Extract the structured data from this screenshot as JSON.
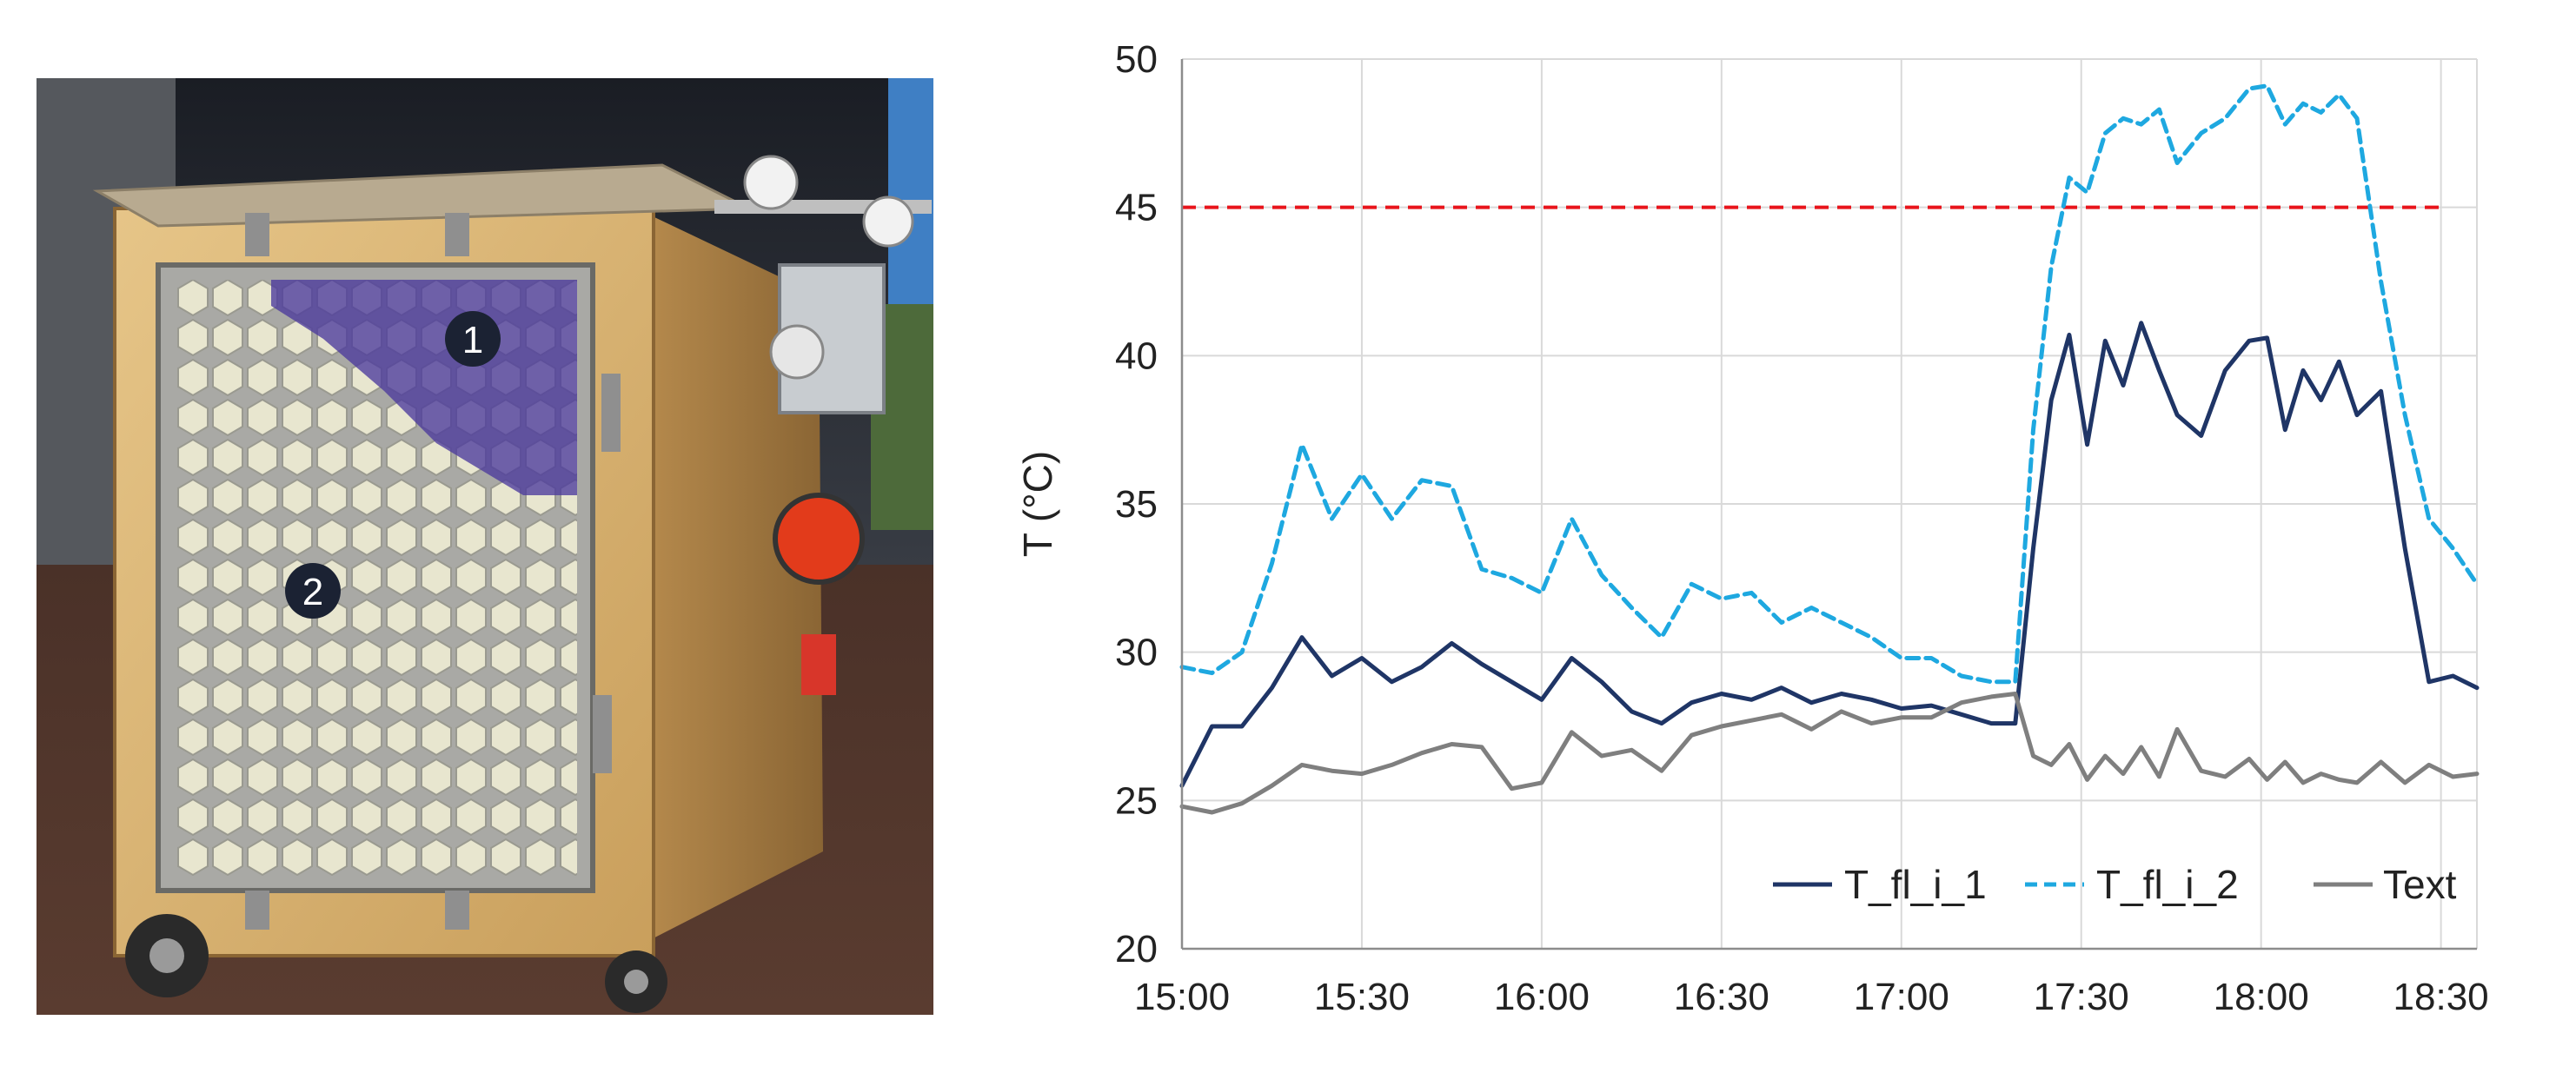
{
  "photo": {
    "markers": [
      {
        "label": "1"
      },
      {
        "label": "2"
      }
    ]
  },
  "chart_data": {
    "type": "line",
    "xlabel": "",
    "ylabel": "T (°C)",
    "ylim": [
      20,
      50
    ],
    "yticks": [
      20,
      25,
      30,
      35,
      40,
      45,
      50
    ],
    "xlim": [
      "15:00",
      "18:36"
    ],
    "xticks": [
      "15:00",
      "15:30",
      "16:00",
      "16:30",
      "17:00",
      "17:30",
      "18:00",
      "18:30"
    ],
    "grid": true,
    "legend_position": "bottom-right",
    "threshold": {
      "y": 45,
      "color": "#e8141b",
      "style": "dashed"
    },
    "series": [
      {
        "name": "T_fl_i_1",
        "color": "#1f3566",
        "style": "solid",
        "x": [
          "15:00",
          "15:05",
          "15:10",
          "15:15",
          "15:20",
          "15:25",
          "15:30",
          "15:35",
          "15:40",
          "15:45",
          "15:50",
          "15:55",
          "16:00",
          "16:05",
          "16:10",
          "16:15",
          "16:20",
          "16:25",
          "16:30",
          "16:35",
          "16:40",
          "16:45",
          "16:50",
          "16:55",
          "17:00",
          "17:05",
          "17:10",
          "17:15",
          "17:19",
          "17:22",
          "17:25",
          "17:28",
          "17:31",
          "17:34",
          "17:37",
          "17:40",
          "17:43",
          "17:46",
          "17:50",
          "17:54",
          "17:58",
          "18:01",
          "18:04",
          "18:07",
          "18:10",
          "18:13",
          "18:16",
          "18:20",
          "18:24",
          "18:28",
          "18:32",
          "18:36"
        ],
        "values": [
          25.5,
          27.5,
          27.5,
          28.8,
          30.5,
          29.2,
          29.8,
          29.0,
          29.5,
          30.3,
          29.6,
          29.0,
          28.4,
          29.8,
          29.0,
          28.0,
          27.6,
          28.3,
          28.6,
          28.4,
          28.8,
          28.3,
          28.6,
          28.4,
          28.1,
          28.2,
          27.9,
          27.6,
          27.6,
          33.5,
          38.5,
          40.7,
          37.0,
          40.5,
          39.0,
          41.1,
          39.5,
          38.0,
          37.3,
          39.5,
          40.5,
          40.6,
          37.5,
          39.5,
          38.5,
          39.8,
          38.0,
          38.8,
          33.5,
          29.0,
          29.2,
          28.8
        ]
      },
      {
        "name": "T_fl_i_2",
        "color": "#1ea8e0",
        "style": "dashed",
        "x": [
          "15:00",
          "15:05",
          "15:10",
          "15:15",
          "15:20",
          "15:25",
          "15:30",
          "15:35",
          "15:40",
          "15:45",
          "15:50",
          "15:55",
          "16:00",
          "16:05",
          "16:10",
          "16:15",
          "16:20",
          "16:25",
          "16:30",
          "16:35",
          "16:40",
          "16:45",
          "16:50",
          "16:55",
          "17:00",
          "17:05",
          "17:10",
          "17:15",
          "17:19",
          "17:22",
          "17:25",
          "17:28",
          "17:31",
          "17:34",
          "17:37",
          "17:40",
          "17:43",
          "17:46",
          "17:50",
          "17:54",
          "17:58",
          "18:01",
          "18:04",
          "18:07",
          "18:10",
          "18:13",
          "18:16",
          "18:20",
          "18:24",
          "18:28",
          "18:32",
          "18:36"
        ],
        "values": [
          29.5,
          29.3,
          30.0,
          33.0,
          37.0,
          34.5,
          36.0,
          34.5,
          35.8,
          35.6,
          32.8,
          32.5,
          32.0,
          34.5,
          32.6,
          31.5,
          30.5,
          32.3,
          31.8,
          32.0,
          31.0,
          31.5,
          31.0,
          30.5,
          29.8,
          29.8,
          29.2,
          29.0,
          29.0,
          37.5,
          43.0,
          46.0,
          45.5,
          47.5,
          48.0,
          47.8,
          48.3,
          46.5,
          47.5,
          48.0,
          49.0,
          49.1,
          47.8,
          48.5,
          48.2,
          48.8,
          48.0,
          42.5,
          38.0,
          34.5,
          33.5,
          32.3
        ]
      },
      {
        "name": "Text",
        "color": "#7f7f7f",
        "style": "solid",
        "x": [
          "15:00",
          "15:05",
          "15:10",
          "15:15",
          "15:20",
          "15:25",
          "15:30",
          "15:35",
          "15:40",
          "15:45",
          "15:50",
          "15:55",
          "16:00",
          "16:05",
          "16:10",
          "16:15",
          "16:20",
          "16:25",
          "16:30",
          "16:35",
          "16:40",
          "16:45",
          "16:50",
          "16:55",
          "17:00",
          "17:05",
          "17:10",
          "17:15",
          "17:19",
          "17:22",
          "17:25",
          "17:28",
          "17:31",
          "17:34",
          "17:37",
          "17:40",
          "17:43",
          "17:46",
          "17:50",
          "17:54",
          "17:58",
          "18:01",
          "18:04",
          "18:07",
          "18:10",
          "18:13",
          "18:16",
          "18:20",
          "18:24",
          "18:28",
          "18:32",
          "18:36"
        ],
        "values": [
          24.8,
          24.6,
          24.9,
          25.5,
          26.2,
          26.0,
          25.9,
          26.2,
          26.6,
          26.9,
          26.8,
          25.4,
          25.6,
          27.3,
          26.5,
          26.7,
          26.0,
          27.2,
          27.5,
          27.7,
          27.9,
          27.4,
          28.0,
          27.6,
          27.8,
          27.8,
          28.3,
          28.5,
          28.6,
          26.5,
          26.2,
          26.9,
          25.7,
          26.5,
          25.9,
          26.8,
          25.8,
          27.4,
          26.0,
          25.8,
          26.4,
          25.7,
          26.3,
          25.6,
          25.9,
          25.7,
          25.6,
          26.3,
          25.6,
          26.2,
          25.8,
          25.9
        ]
      }
    ]
  }
}
